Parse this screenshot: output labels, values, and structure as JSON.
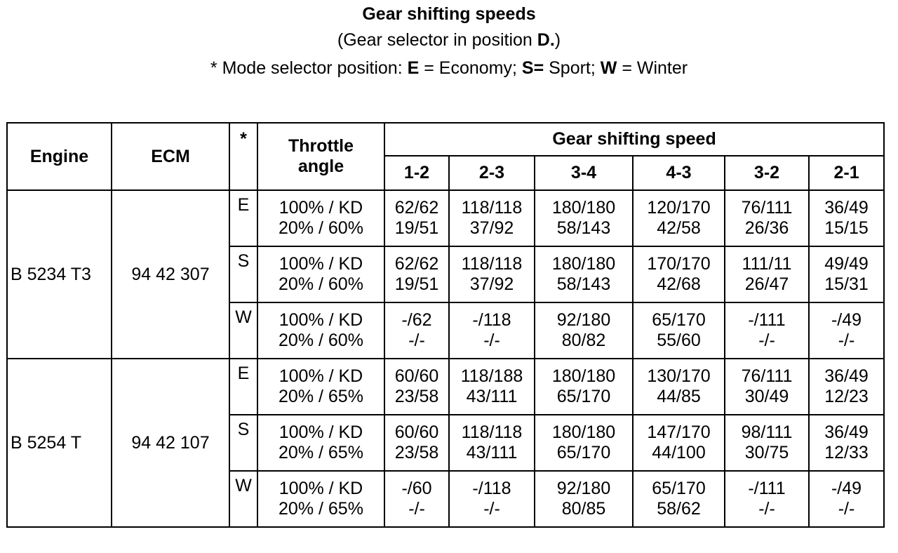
{
  "title": "Gear shifting speeds",
  "subtitle_prefix": "(Gear selector in position ",
  "subtitle_pos": "D.",
  "subtitle_suffix": ")",
  "legend": {
    "prefix": "* Mode selector position: ",
    "e_key": "E",
    "e_text": " = Economy; ",
    "s_key": "S=",
    "s_text": " Sport; ",
    "w_key": "W",
    "w_text": " = Winter"
  },
  "headers": {
    "engine": "Engine",
    "ecm": "ECM",
    "mode": "*",
    "throttle_1": "Throttle",
    "throttle_2": "angle",
    "group": "Gear shifting speed",
    "shifts": [
      "1-2",
      "2-3",
      "3-4",
      "4-3",
      "3-2",
      "2-1"
    ]
  },
  "engines": [
    {
      "engine": "B 5234 T3",
      "ecm": "94 42 307",
      "rows": [
        {
          "mode": "E",
          "throttle": [
            "100% / KD",
            "20% / 60%"
          ],
          "values": [
            [
              "62/62",
              "19/51"
            ],
            [
              "118/118",
              "37/92"
            ],
            [
              "180/180",
              "58/143"
            ],
            [
              "120/170",
              "42/58"
            ],
            [
              "76/111",
              "26/36"
            ],
            [
              "36/49",
              "15/15"
            ]
          ]
        },
        {
          "mode": "S",
          "throttle": [
            "100% / KD",
            "20% / 60%"
          ],
          "values": [
            [
              "62/62",
              "19/51"
            ],
            [
              "118/118",
              "37/92"
            ],
            [
              "180/180",
              "58/143"
            ],
            [
              "170/170",
              "42/68"
            ],
            [
              "111/11",
              "26/47"
            ],
            [
              "49/49",
              "15/31"
            ]
          ]
        },
        {
          "mode": "W",
          "throttle": [
            "100% / KD",
            "20% / 60%"
          ],
          "values": [
            [
              "-/62",
              "-/-"
            ],
            [
              "-/118",
              "-/-"
            ],
            [
              "92/180",
              "80/82"
            ],
            [
              "65/170",
              "55/60"
            ],
            [
              "-/111",
              "-/-"
            ],
            [
              "-/49",
              "-/-"
            ]
          ]
        }
      ]
    },
    {
      "engine": "B 5254 T",
      "ecm": "94 42 107",
      "rows": [
        {
          "mode": "E",
          "throttle": [
            "100% / KD",
            "20% / 65%"
          ],
          "values": [
            [
              "60/60",
              "23/58"
            ],
            [
              "118/188",
              "43/111"
            ],
            [
              "180/180",
              "65/170"
            ],
            [
              "130/170",
              "44/85"
            ],
            [
              "76/111",
              "30/49"
            ],
            [
              "36/49",
              "12/23"
            ]
          ]
        },
        {
          "mode": "S",
          "throttle": [
            "100% / KD",
            "20% / 65%"
          ],
          "values": [
            [
              "60/60",
              "23/58"
            ],
            [
              "118/118",
              "43/111"
            ],
            [
              "180/180",
              "65/170"
            ],
            [
              "147/170",
              "44/100"
            ],
            [
              "98/111",
              "30/75"
            ],
            [
              "36/49",
              "12/33"
            ]
          ]
        },
        {
          "mode": "W",
          "throttle": [
            "100% / KD",
            "20% / 65%"
          ],
          "values": [
            [
              "-/60",
              "-/-"
            ],
            [
              "-/118",
              "-/-"
            ],
            [
              "92/180",
              "80/85"
            ],
            [
              "65/170",
              "58/62"
            ],
            [
              "-/111",
              "-/-"
            ],
            [
              "-/49",
              "-/-"
            ]
          ]
        }
      ]
    }
  ]
}
